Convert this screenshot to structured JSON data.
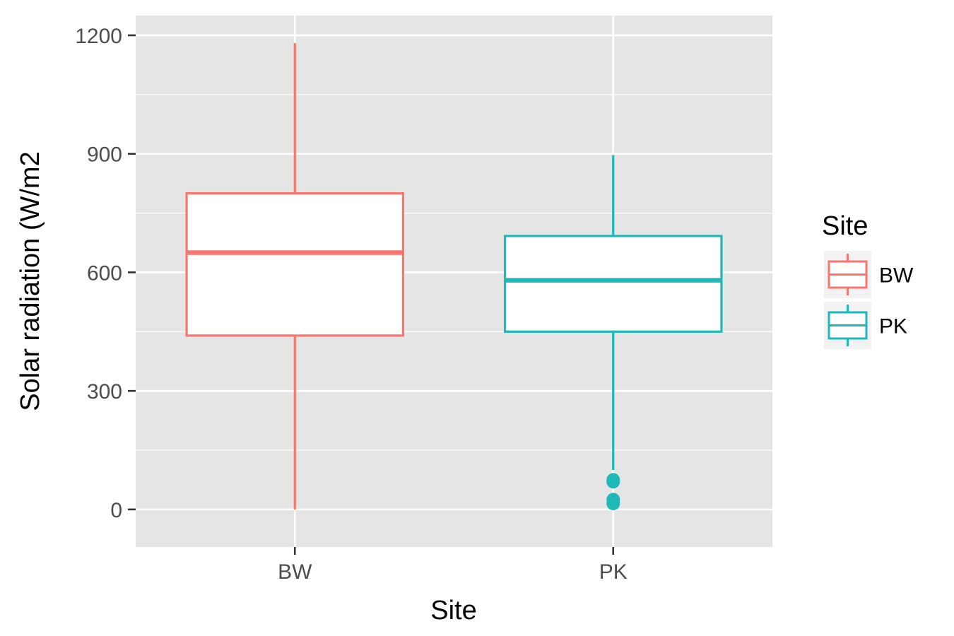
{
  "chart_data": {
    "type": "box",
    "xlabel": "Site",
    "ylabel": "Solar radiation (W/m2",
    "ylim": [
      -95,
      1250
    ],
    "yticks": [
      0,
      300,
      600,
      900,
      1200
    ],
    "yticks_labels": [
      "0",
      "300",
      "600",
      "900",
      "1200"
    ],
    "minor_grid": [
      150,
      450,
      750,
      1050
    ],
    "categories": [
      "BW",
      "PK"
    ],
    "grid": true,
    "legend": {
      "title": "Site",
      "position": "right",
      "items": [
        {
          "label": "BW",
          "color": "#F8766D"
        },
        {
          "label": "PK",
          "color": "#1FB8B8"
        }
      ]
    },
    "series": [
      {
        "category": "BW",
        "color": "#F8766D",
        "whisker_low": 0,
        "q1": 440,
        "median": 650,
        "q3": 800,
        "whisker_high": 1180,
        "outliers": []
      },
      {
        "category": "PK",
        "color": "#1FB8B8",
        "whisker_low": 100,
        "q1": 450,
        "median": 580,
        "q3": 692,
        "whisker_high": 897,
        "outliers": [
          15,
          25,
          70,
          75
        ]
      }
    ]
  }
}
